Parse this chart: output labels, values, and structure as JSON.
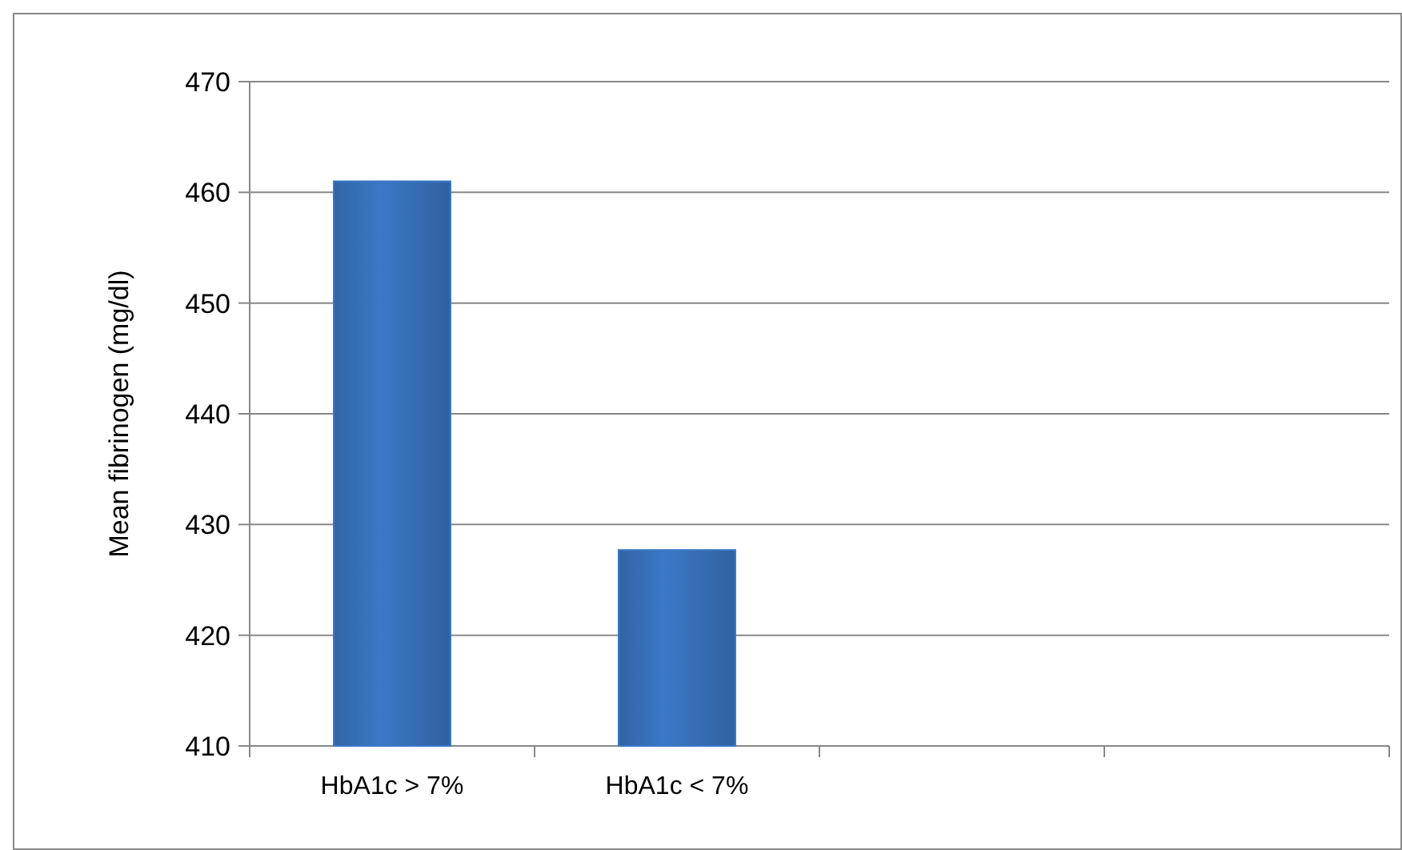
{
  "chart_data": {
    "type": "bar",
    "ylabel": "Mean fibrinogen (mg/dl)",
    "categories": [
      "HbA1c > 7%",
      "HbA1c < 7%",
      null,
      null
    ],
    "values": [
      461,
      427.7,
      null,
      null
    ],
    "color": "#3b78c6",
    "ylim": [
      410,
      470
    ],
    "yticks": [
      410,
      420,
      430,
      440,
      450,
      460,
      470
    ],
    "grid": "y"
  }
}
